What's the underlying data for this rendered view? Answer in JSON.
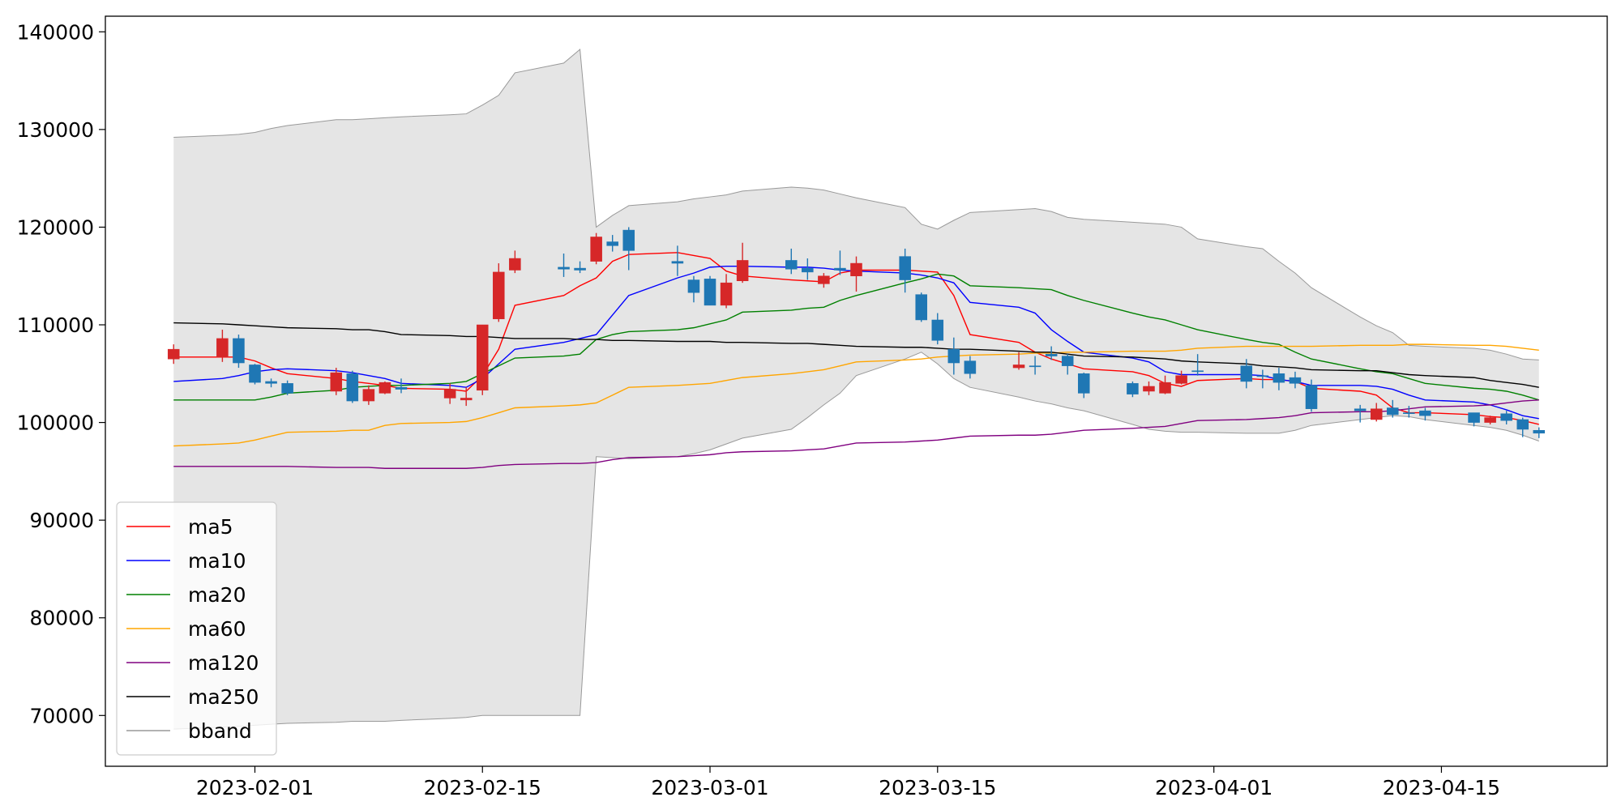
{
  "chart_data": {
    "type": "candlestick",
    "x": [
      "2023-01-27",
      "2023-01-30",
      "2023-01-31",
      "2023-02-01",
      "2023-02-02",
      "2023-02-03",
      "2023-02-06",
      "2023-02-07",
      "2023-02-08",
      "2023-02-09",
      "2023-02-10",
      "2023-02-13",
      "2023-02-14",
      "2023-02-15",
      "2023-02-16",
      "2023-02-17",
      "2023-02-20",
      "2023-02-21",
      "2023-02-22",
      "2023-02-23",
      "2023-02-24",
      "2023-02-27",
      "2023-02-28",
      "2023-03-01",
      "2023-03-02",
      "2023-03-03",
      "2023-03-06",
      "2023-03-07",
      "2023-03-08",
      "2023-03-09",
      "2023-03-10",
      "2023-03-13",
      "2023-03-14",
      "2023-03-15",
      "2023-03-16",
      "2023-03-17",
      "2023-03-20",
      "2023-03-21",
      "2023-03-22",
      "2023-03-23",
      "2023-03-24",
      "2023-03-27",
      "2023-03-28",
      "2023-03-29",
      "2023-03-30",
      "2023-03-31",
      "2023-04-03",
      "2023-04-04",
      "2023-04-05",
      "2023-04-06",
      "2023-04-07",
      "2023-04-10",
      "2023-04-11",
      "2023-04-12",
      "2023-04-13",
      "2023-04-14",
      "2023-04-17",
      "2023-04-18",
      "2023-04-19",
      "2023-04-20",
      "2023-04-21"
    ],
    "open": [
      106500,
      106700,
      108600,
      105900,
      104200,
      104000,
      103200,
      105000,
      102200,
      103000,
      103600,
      102500,
      102300,
      103300,
      110600,
      115600,
      115900,
      115800,
      116500,
      118500,
      119700,
      116500,
      114600,
      114700,
      112000,
      114500,
      116600,
      115800,
      114200,
      115800,
      115000,
      117000,
      113100,
      110500,
      107500,
      106300,
      105600,
      105800,
      107000,
      106800,
      105000,
      104000,
      103200,
      103000,
      104000,
      105300,
      105800,
      104800,
      105000,
      104600,
      103800,
      101400,
      100300,
      101500,
      101000,
      101200,
      101000,
      100000,
      100900,
      100300,
      99200
    ],
    "high": [
      108000,
      109500,
      109000,
      106000,
      104500,
      104300,
      105600,
      105300,
      103800,
      104200,
      104500,
      104000,
      103600,
      110000,
      116300,
      117600,
      117300,
      116500,
      119400,
      119200,
      120000,
      118100,
      115000,
      115000,
      115200,
      118400,
      117800,
      116800,
      115300,
      117600,
      117000,
      117800,
      113300,
      111200,
      108700,
      106800,
      107200,
      106800,
      107800,
      107000,
      105100,
      104200,
      104200,
      104800,
      105300,
      107000,
      106500,
      105400,
      105600,
      105200,
      104400,
      101800,
      102000,
      102300,
      101700,
      101500,
      101000,
      100700,
      101200,
      100500,
      99500
    ],
    "low": [
      106000,
      106200,
      105600,
      103900,
      103600,
      102800,
      102800,
      102000,
      101800,
      102900,
      103000,
      101900,
      101700,
      102800,
      110300,
      115300,
      114900,
      115300,
      116200,
      117500,
      115600,
      115000,
      112300,
      112000,
      111700,
      114300,
      115200,
      114600,
      113800,
      115100,
      113400,
      113300,
      110300,
      108000,
      104900,
      104500,
      105400,
      104900,
      106400,
      104900,
      102500,
      102600,
      102800,
      102900,
      103900,
      104800,
      103500,
      103500,
      103300,
      103500,
      101100,
      100000,
      100100,
      100500,
      100500,
      100200,
      99600,
      99800,
      99800,
      98500,
      98400
    ],
    "close": [
      107500,
      108600,
      106100,
      104100,
      104000,
      103000,
      105100,
      102200,
      103400,
      104100,
      103400,
      103400,
      102500,
      110000,
      115400,
      116800,
      115700,
      115600,
      119000,
      118100,
      117600,
      116300,
      113300,
      112000,
      114300,
      116600,
      115700,
      115400,
      115000,
      115600,
      116300,
      114600,
      110500,
      108400,
      106100,
      105000,
      105900,
      105800,
      106800,
      105800,
      103000,
      102900,
      103700,
      104100,
      104800,
      105300,
      104200,
      104700,
      104100,
      104000,
      101400,
      101200,
      101400,
      100800,
      101000,
      100700,
      100000,
      100500,
      100200,
      99300,
      98900
    ],
    "up_color": "#d62728",
    "down_color": "#1f77b4",
    "series": [
      {
        "name": "ma5",
        "color": "#ff0000",
        "values": [
          106700,
          106700,
          106700,
          106300,
          105600,
          105000,
          104500,
          104200,
          104000,
          103800,
          103500,
          103400,
          103200,
          104800,
          107500,
          112000,
          113000,
          114000,
          114800,
          116500,
          117200,
          117400,
          117100,
          116800,
          115500,
          115000,
          114600,
          114500,
          114400,
          115300,
          115600,
          115600,
          115500,
          115400,
          113000,
          109000,
          108200,
          107200,
          106500,
          106000,
          105500,
          105200,
          104800,
          104000,
          103700,
          104300,
          104500,
          104400,
          104400,
          104200,
          103500,
          103200,
          102800,
          101500,
          101000,
          101000,
          100800,
          100600,
          100500,
          100200,
          99800
        ]
      },
      {
        "name": "ma10",
        "color": "#0000ff",
        "values": [
          104200,
          104500,
          104800,
          105200,
          105400,
          105500,
          105300,
          105100,
          104800,
          104500,
          104000,
          103800,
          103600,
          104500,
          106000,
          107500,
          108200,
          108600,
          109000,
          111000,
          113000,
          114800,
          115300,
          115900,
          116000,
          116000,
          115900,
          115900,
          115800,
          115600,
          115500,
          115300,
          115100,
          114800,
          114300,
          112300,
          111800,
          111200,
          109500,
          108300,
          107200,
          106600,
          106200,
          105200,
          104900,
          104900,
          104900,
          104800,
          104400,
          104200,
          103800,
          103800,
          103700,
          103400,
          102800,
          102300,
          102100,
          101800,
          101300,
          100700,
          100400
        ]
      },
      {
        "name": "ma20",
        "color": "#008000",
        "values": [
          102300,
          102300,
          102300,
          102300,
          102600,
          103000,
          103300,
          103600,
          103700,
          103800,
          103800,
          104000,
          104200,
          105000,
          105800,
          106600,
          106800,
          107000,
          108500,
          109000,
          109300,
          109500,
          109700,
          110100,
          110500,
          111300,
          111500,
          111700,
          111800,
          112500,
          113000,
          114300,
          114700,
          115200,
          115000,
          114000,
          113800,
          113700,
          113600,
          113000,
          112500,
          111200,
          110800,
          110500,
          110000,
          109500,
          108500,
          108200,
          108000,
          107200,
          106500,
          105500,
          105200,
          105000,
          104500,
          104000,
          103500,
          103400,
          103200,
          102800,
          102300
        ]
      },
      {
        "name": "ma60",
        "color": "#ffa500",
        "values": [
          97600,
          97800,
          97900,
          98200,
          98600,
          99000,
          99100,
          99200,
          99200,
          99700,
          99900,
          100000,
          100100,
          100500,
          101000,
          101500,
          101700,
          101800,
          102000,
          102800,
          103600,
          103800,
          103900,
          104000,
          104300,
          104600,
          105000,
          105200,
          105400,
          105800,
          106200,
          106400,
          106500,
          106700,
          106800,
          106900,
          107000,
          107100,
          107100,
          107200,
          107200,
          107300,
          107300,
          107300,
          107400,
          107600,
          107800,
          107800,
          107800,
          107800,
          107800,
          107900,
          107900,
          107900,
          108000,
          108000,
          107900,
          107900,
          107800,
          107600,
          107400
        ]
      },
      {
        "name": "ma120",
        "color": "#800080",
        "values": [
          95500,
          95500,
          95500,
          95500,
          95500,
          95500,
          95400,
          95400,
          95400,
          95300,
          95300,
          95300,
          95300,
          95400,
          95600,
          95700,
          95800,
          95800,
          95900,
          96200,
          96400,
          96500,
          96600,
          96700,
          96900,
          97000,
          97100,
          97200,
          97300,
          97600,
          97900,
          98000,
          98100,
          98200,
          98400,
          98600,
          98700,
          98700,
          98800,
          99000,
          99200,
          99400,
          99500,
          99600,
          99900,
          100200,
          100300,
          100400,
          100500,
          100700,
          101000,
          101100,
          101100,
          101200,
          101400,
          101600,
          101700,
          101800,
          102000,
          102200,
          102300
        ]
      },
      {
        "name": "ma250",
        "color": "#000000",
        "values": [
          110200,
          110100,
          110000,
          109900,
          109800,
          109700,
          109600,
          109500,
          109500,
          109300,
          109000,
          108900,
          108800,
          108800,
          108700,
          108600,
          108600,
          108500,
          108500,
          108400,
          108400,
          108300,
          108300,
          108300,
          108200,
          108200,
          108100,
          108100,
          108000,
          107900,
          107800,
          107700,
          107700,
          107600,
          107500,
          107500,
          107300,
          107200,
          107200,
          107000,
          106800,
          106700,
          106600,
          106500,
          106300,
          106200,
          106000,
          105800,
          105700,
          105600,
          105400,
          105300,
          105300,
          105100,
          104900,
          104800,
          104600,
          104300,
          104100,
          103900,
          103600
        ]
      }
    ],
    "bband": {
      "name": "bband",
      "color": "#999999",
      "fill": "#e5e5e5",
      "upper": [
        129200,
        129400,
        129500,
        129700,
        130100,
        130400,
        131000,
        131000,
        131100,
        131200,
        131300,
        131500,
        131600,
        132500,
        133500,
        135800,
        136800,
        138200,
        120000,
        121200,
        122200,
        122600,
        122900,
        123100,
        123300,
        123700,
        124100,
        124000,
        123800,
        123400,
        123000,
        122000,
        120300,
        119800,
        120700,
        121500,
        121800,
        121900,
        121600,
        121000,
        120800,
        120500,
        120400,
        120300,
        120000,
        118800,
        118000,
        117800,
        116500,
        115300,
        113800,
        110800,
        109900,
        109200,
        107900,
        107800,
        107600,
        107400,
        107000,
        106500,
        106400
      ],
      "lower": [
        68600,
        68800,
        68900,
        69000,
        69100,
        69200,
        69300,
        69400,
        69400,
        69400,
        69500,
        69700,
        69800,
        70000,
        70000,
        70000,
        70000,
        70000,
        96500,
        96400,
        96300,
        96500,
        96800,
        97200,
        97800,
        98400,
        99300,
        100500,
        101800,
        103000,
        104800,
        106500,
        107200,
        106000,
        104500,
        103600,
        102600,
        102200,
        101900,
        101500,
        101200,
        99800,
        99300,
        99100,
        99000,
        99000,
        98900,
        98900,
        98900,
        99200,
        99700,
        100300,
        100500,
        100700,
        100600,
        100300,
        99700,
        99500,
        99200,
        98700,
        98100
      ]
    },
    "xlim": [
      "2023-01-22T19:12:00",
      "2023-04-25T04:48:00"
    ],
    "xticks": [
      "2023-02-01",
      "2023-02-15",
      "2023-03-01",
      "2023-03-15",
      "2023-04-01",
      "2023-04-15"
    ],
    "ylim": [
      64800,
      141600
    ],
    "yticks": [
      70000,
      80000,
      90000,
      100000,
      110000,
      120000,
      130000,
      140000
    ],
    "legend": "lower left"
  }
}
